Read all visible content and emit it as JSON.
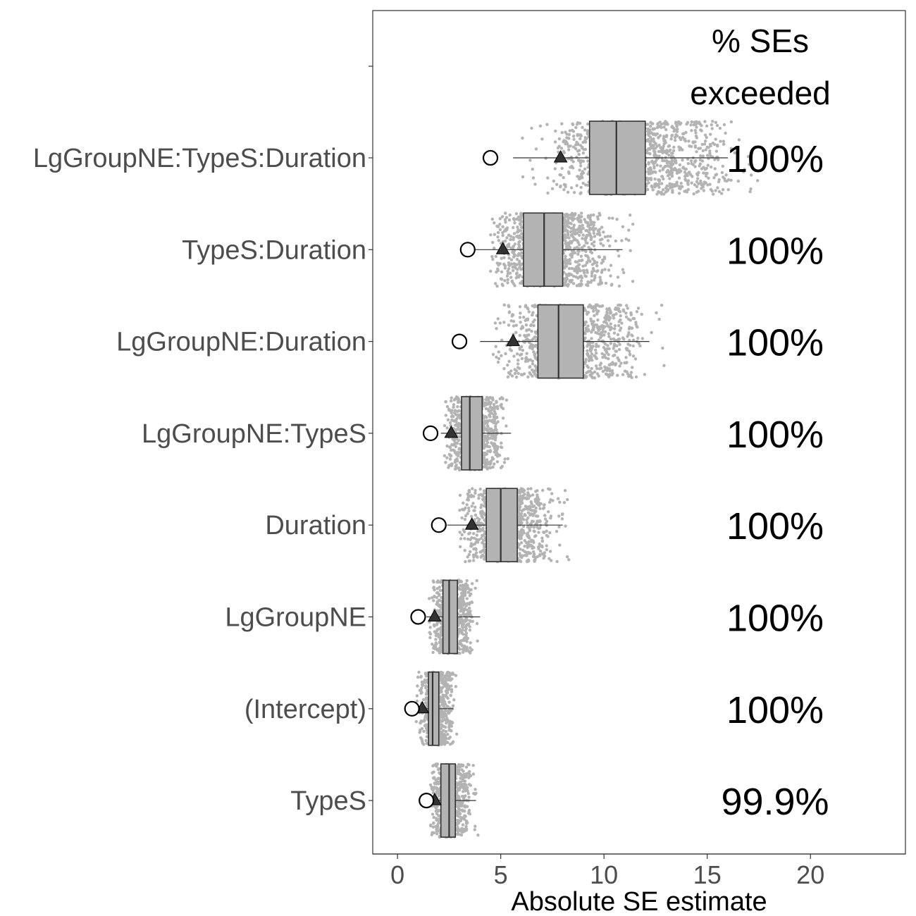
{
  "chart_data": {
    "type": "boxplot",
    "title": "",
    "xlabel": "Absolute SE estimate",
    "ylabel": "",
    "xlim": [
      -1.2,
      24.6
    ],
    "x_ticks": [
      0,
      5,
      10,
      15,
      20
    ],
    "grid": false,
    "header_lines": [
      "% SEs",
      "exceeded"
    ],
    "colors": {
      "points": "#b3b3b3",
      "box_fill": "#b3b3b3",
      "box_stroke": "#333333",
      "triangle": "#333333",
      "circle_stroke": "#000000",
      "circle_fill": "#ffffff"
    },
    "categories": [
      {
        "label": "LgGroupNE:TypeS:Duration",
        "q1": 9.3,
        "median": 10.6,
        "q3": 12.0,
        "whisker_low": 5.6,
        "whisker_high": 16.0,
        "mean_marker": 7.9,
        "circle_marker": 4.5,
        "pct_exceeded": "100%",
        "spread_low": 6.0,
        "spread_high": 17.5,
        "n_points": 1100
      },
      {
        "label": "TypeS:Duration",
        "q1": 6.1,
        "median": 7.1,
        "q3": 8.0,
        "whisker_low": 3.7,
        "whisker_high": 10.9,
        "mean_marker": 5.1,
        "circle_marker": 3.4,
        "pct_exceeded": "100%",
        "spread_low": 4.5,
        "spread_high": 11.5,
        "n_points": 1000
      },
      {
        "label": "LgGroupNE:Duration",
        "q1": 6.8,
        "median": 7.8,
        "q3": 9.0,
        "whisker_low": 4.0,
        "whisker_high": 12.2,
        "mean_marker": 5.6,
        "circle_marker": 3.0,
        "pct_exceeded": "100%",
        "spread_low": 4.6,
        "spread_high": 13.0,
        "n_points": 1000
      },
      {
        "label": "LgGroupNE:TypeS",
        "q1": 3.1,
        "median": 3.5,
        "q3": 4.1,
        "whisker_low": 2.1,
        "whisker_high": 5.5,
        "mean_marker": 2.6,
        "circle_marker": 1.6,
        "pct_exceeded": "100%",
        "spread_low": 2.2,
        "spread_high": 5.4,
        "n_points": 750
      },
      {
        "label": "Duration",
        "q1": 4.3,
        "median": 5.0,
        "q3": 5.8,
        "whisker_low": 2.4,
        "whisker_high": 8.0,
        "mean_marker": 3.6,
        "circle_marker": 2.0,
        "pct_exceeded": "100%",
        "spread_low": 3.0,
        "spread_high": 8.3,
        "n_points": 900
      },
      {
        "label": "LgGroupNE",
        "q1": 2.2,
        "median": 2.5,
        "q3": 2.9,
        "whisker_low": 1.4,
        "whisker_high": 4.0,
        "mean_marker": 1.8,
        "circle_marker": 1.0,
        "pct_exceeded": "100%",
        "spread_low": 1.5,
        "spread_high": 3.9,
        "n_points": 700
      },
      {
        "label": "(Intercept)",
        "q1": 1.5,
        "median": 1.7,
        "q3": 2.0,
        "whisker_low": 0.8,
        "whisker_high": 2.7,
        "mean_marker": 1.2,
        "circle_marker": 0.7,
        "pct_exceeded": "100%",
        "spread_low": 0.9,
        "spread_high": 2.9,
        "n_points": 650
      },
      {
        "label": "TypeS",
        "q1": 2.1,
        "median": 2.5,
        "q3": 2.8,
        "whisker_low": 1.5,
        "whisker_high": 3.8,
        "mean_marker": 1.8,
        "circle_marker": 1.4,
        "pct_exceeded": "99.9%",
        "spread_low": 1.6,
        "spread_high": 3.9,
        "n_points": 650
      }
    ]
  }
}
